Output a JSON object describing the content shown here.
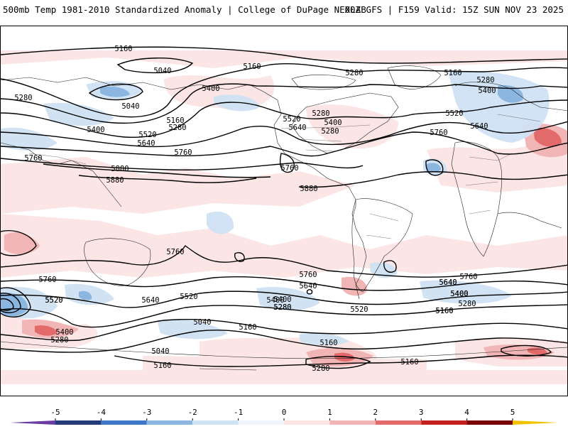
{
  "header": {
    "title": "500mb Temp 1981-2010 Standardized Anomaly | College of DuPage NEXLAB",
    "run_info": "00Z GFS | F159 Valid: 15Z SUN NOV 23 2025"
  },
  "map": {
    "contour_labels": [
      "5160",
      "5040",
      "5160",
      "5280",
      "5160",
      "5280",
      "5280",
      "5400",
      "5040",
      "5280",
      "5400",
      "5520",
      "5400",
      "5520",
      "5280",
      "5400",
      "5520",
      "5160",
      "5280",
      "5640",
      "5640",
      "5760",
      "5760",
      "5640",
      "5760",
      "5760",
      "5880",
      "5880",
      "5880",
      "5760",
      "5760",
      "5760",
      "5640",
      "5760",
      "5520",
      "5400",
      "5520",
      "5640",
      "5520",
      "5400",
      "5400",
      "5280",
      "5640",
      "5400",
      "5280",
      "5160",
      "5040",
      "5160",
      "5040",
      "5160",
      "5160",
      "5280",
      "5160",
      "5640",
      "5400",
      "5280",
      "5160",
      "5520",
      "5400",
      "5280"
    ]
  },
  "colorbar": {
    "ticks": [
      "-5",
      "-4",
      "-3",
      "-2",
      "-1",
      "0",
      "1",
      "2",
      "3",
      "4",
      "5"
    ],
    "colors": [
      "#6a3da5",
      "#253a7a",
      "#3d79c8",
      "#8ab6e0",
      "#cfe2f3",
      "#eef4fa",
      "#fbe4e4",
      "#f2b5b5",
      "#e36a6a",
      "#c42020",
      "#7a0000",
      "#f2c200"
    ]
  }
}
